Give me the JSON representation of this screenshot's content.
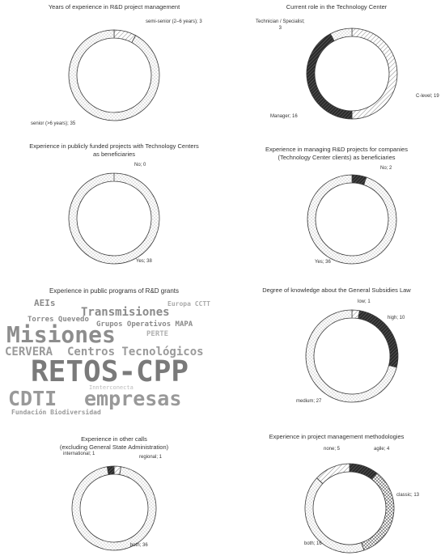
{
  "colors": {
    "stroke": "#3a3a3a",
    "dots": "#555555",
    "dark": "#222222",
    "bg": "#ffffff"
  },
  "chart_data": [
    {
      "type": "pie",
      "title": "Years of experience in R&D project management",
      "categories": [
        "semi-senior (2–6 years)",
        "senior (>6 years)"
      ],
      "values": [
        3,
        35
      ],
      "labels": [
        "semi-senior (2–6 years); 3",
        "senior (>6 years); 35"
      ],
      "patterns": [
        "diagonal",
        "dots"
      ]
    },
    {
      "type": "pie",
      "title": "Current role in the Technology Center",
      "categories": [
        "C-level",
        "Manager",
        "Technician / Specialist"
      ],
      "values": [
        19,
        16,
        3
      ],
      "labels": [
        "C-level; 19",
        "Manager; 16",
        "Technician / Specialist;\n3"
      ],
      "patterns": [
        "diagonal",
        "dark",
        "dots"
      ]
    },
    {
      "type": "pie",
      "title": "Experience in publicly funded projects with Technology Centers\nas beneficiaries",
      "categories": [
        "No",
        "Yes"
      ],
      "values": [
        0,
        38
      ],
      "labels": [
        "No; 0",
        "Yes; 38"
      ],
      "patterns": [
        "dark",
        "dots"
      ]
    },
    {
      "type": "pie",
      "title": "Experience in managing R&D projects for companies\n(Technology Center clients) as beneficiaries",
      "categories": [
        "No",
        "Yes"
      ],
      "values": [
        2,
        36
      ],
      "labels": [
        "No; 2",
        "Yes; 36"
      ],
      "patterns": [
        "dark",
        "dots"
      ]
    },
    {
      "type": "pie",
      "title": "Degree of knowledge about the General Subsidies Law",
      "categories": [
        "low",
        "high",
        "medium"
      ],
      "values": [
        1,
        10,
        27
      ],
      "labels": [
        "low; 1",
        "high; 10",
        "medium; 27"
      ],
      "patterns": [
        "diagonal",
        "dark",
        "dots"
      ]
    },
    {
      "type": "pie",
      "title": "Experience in other calls\n(excluding General State Administration)",
      "categories": [
        "regional",
        "both",
        "international"
      ],
      "values": [
        1,
        36,
        1
      ],
      "labels": [
        "regional; 1",
        "both; 36",
        "international; 1"
      ],
      "patterns": [
        "diagonal",
        "dots",
        "dark"
      ]
    },
    {
      "type": "pie",
      "title": "Experience in project management methodologies",
      "categories": [
        "agile",
        "classic",
        "both",
        "none"
      ],
      "values": [
        4,
        13,
        16,
        5
      ],
      "labels": [
        "agile; 4",
        "classic; 13",
        "both; 16",
        "none; 5"
      ],
      "patterns": [
        "dark",
        "cross",
        "dots",
        "diagonal"
      ]
    }
  ],
  "wordcloud": {
    "title": "Experience in public programs of R&D grants",
    "words": [
      {
        "text": "AEIs",
        "size": 3
      },
      {
        "text": "Europa CCTT",
        "size": 2
      },
      {
        "text": "Transmisiones",
        "size": 4
      },
      {
        "text": "Torres Quevedo",
        "size": 2
      },
      {
        "text": "Grupos Operativos MAPA",
        "size": 2
      },
      {
        "text": "Misiones",
        "size": 8
      },
      {
        "text": "PERTE",
        "size": 2
      },
      {
        "text": "CERVERA",
        "size": 4
      },
      {
        "text": "Centros Tecnológicos",
        "size": 4
      },
      {
        "text": "RETOS-CPP",
        "size": 10
      },
      {
        "text": "Innterconecta",
        "size": 1
      },
      {
        "text": "CDTI",
        "size": 6
      },
      {
        "text": "empresas",
        "size": 6
      },
      {
        "text": "Fundación Biodiversidad",
        "size": 2
      }
    ]
  }
}
